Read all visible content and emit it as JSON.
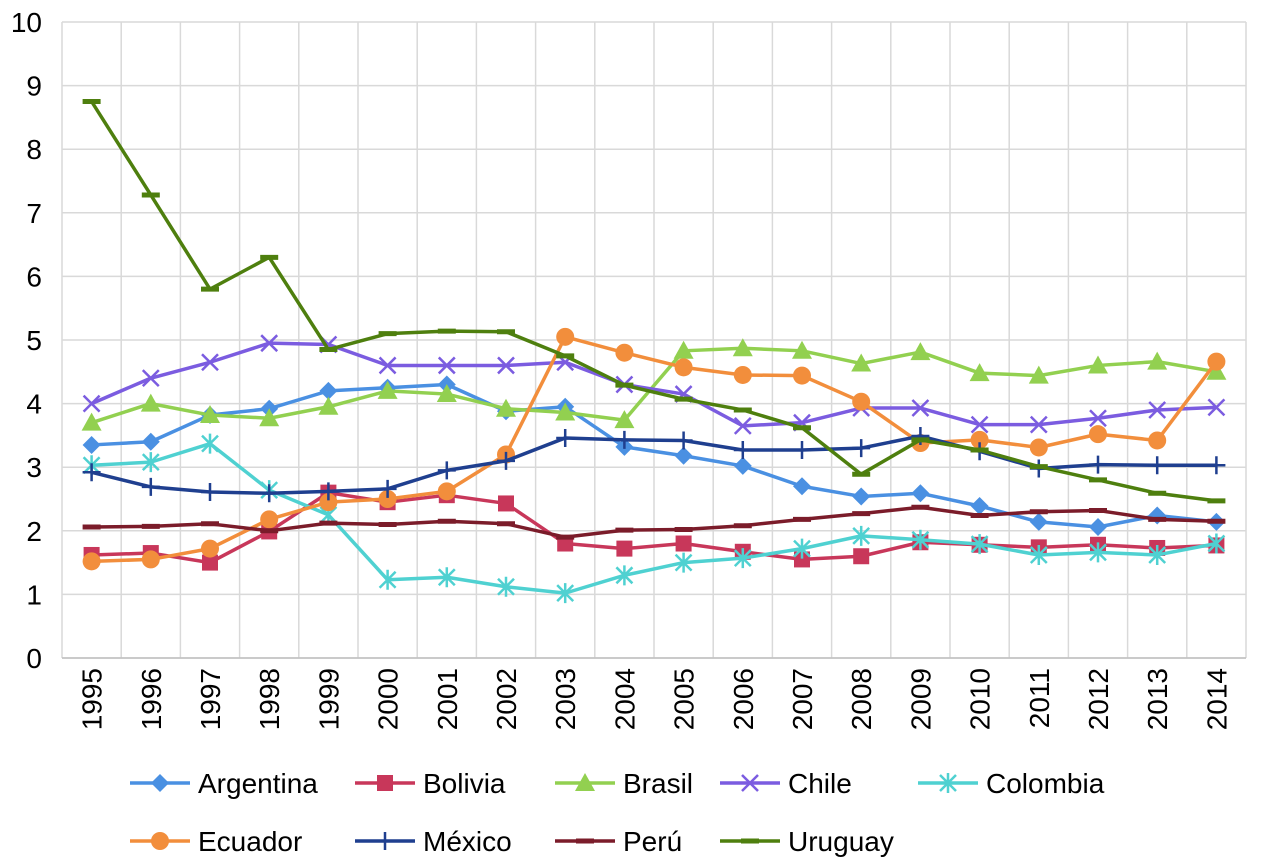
{
  "chart_data": {
    "type": "line",
    "title": "",
    "xlabel": "",
    "ylabel": "",
    "ylim": [
      0,
      10
    ],
    "yticks": [
      "0",
      "1",
      "2",
      "3",
      "4",
      "5",
      "6",
      "7",
      "8",
      "9",
      "10"
    ],
    "grid": true,
    "legend_position": "bottom",
    "categories": [
      "1995",
      "1996",
      "1997",
      "1998",
      "1999",
      "2000",
      "2001",
      "2002",
      "2003",
      "2004",
      "2005",
      "2006",
      "2007",
      "2008",
      "2009",
      "2010",
      "2011",
      "2012",
      "2013",
      "2014"
    ],
    "series": [
      {
        "name": "Argentina",
        "color": "#4a90e2",
        "marker": "diamond",
        "values": [
          3.35,
          3.4,
          3.82,
          3.92,
          4.2,
          4.25,
          4.3,
          3.88,
          3.95,
          3.32,
          3.18,
          3.02,
          2.7,
          2.54,
          2.59,
          2.39,
          2.14,
          2.06,
          2.24,
          2.14
        ]
      },
      {
        "name": "Bolivia",
        "color": "#c8375a",
        "marker": "square",
        "values": [
          1.62,
          1.65,
          1.5,
          1.99,
          2.6,
          2.45,
          2.56,
          2.43,
          1.8,
          1.72,
          1.8,
          1.67,
          1.55,
          1.6,
          1.82,
          1.78,
          1.74,
          1.78,
          1.73,
          1.77
        ]
      },
      {
        "name": "Brasil",
        "color": "#92d050",
        "marker": "triangle",
        "values": [
          3.7,
          4.0,
          3.82,
          3.77,
          3.95,
          4.2,
          4.15,
          3.92,
          3.86,
          3.74,
          4.83,
          4.87,
          4.83,
          4.63,
          4.81,
          4.48,
          4.44,
          4.6,
          4.66,
          4.5
        ]
      },
      {
        "name": "Chile",
        "color": "#7b5ce0",
        "marker": "x",
        "values": [
          4.0,
          4.4,
          4.65,
          4.95,
          4.93,
          4.6,
          4.6,
          4.6,
          4.65,
          4.3,
          4.15,
          3.65,
          3.7,
          3.93,
          3.93,
          3.67,
          3.67,
          3.77,
          3.9,
          3.94
        ]
      },
      {
        "name": "Colombia",
        "color": "#4fd1d1",
        "marker": "star",
        "values": [
          3.03,
          3.08,
          3.37,
          2.64,
          2.25,
          1.23,
          1.27,
          1.12,
          1.02,
          1.3,
          1.5,
          1.57,
          1.72,
          1.92,
          1.86,
          1.79,
          1.62,
          1.66,
          1.62,
          1.8
        ]
      },
      {
        "name": "Ecuador",
        "color": "#f28e3c",
        "marker": "circle",
        "values": [
          1.52,
          1.55,
          1.72,
          2.18,
          2.45,
          2.5,
          2.62,
          3.2,
          5.05,
          4.8,
          4.57,
          4.45,
          4.44,
          4.03,
          3.38,
          3.43,
          3.31,
          3.52,
          3.42,
          4.66
        ]
      },
      {
        "name": "México",
        "color": "#1f3f8f",
        "marker": "plus",
        "values": [
          2.92,
          2.69,
          2.61,
          2.59,
          2.62,
          2.66,
          2.95,
          3.1,
          3.46,
          3.43,
          3.42,
          3.27,
          3.27,
          3.3,
          3.49,
          3.25,
          2.98,
          3.04,
          3.03,
          3.03
        ]
      },
      {
        "name": "Perú",
        "color": "#7b1c2a",
        "marker": "dash",
        "values": [
          2.06,
          2.07,
          2.11,
          2.0,
          2.12,
          2.1,
          2.15,
          2.11,
          1.9,
          2.01,
          2.02,
          2.08,
          2.18,
          2.27,
          2.37,
          2.24,
          2.3,
          2.32,
          2.18,
          2.15
        ]
      },
      {
        "name": "Uruguay",
        "color": "#4e7f0e",
        "marker": "dash",
        "values": [
          8.75,
          7.28,
          5.8,
          6.3,
          4.85,
          5.1,
          5.14,
          5.13,
          4.75,
          4.29,
          4.07,
          3.9,
          3.62,
          2.89,
          3.43,
          3.27,
          3.01,
          2.8,
          2.59,
          2.47
        ]
      }
    ]
  }
}
